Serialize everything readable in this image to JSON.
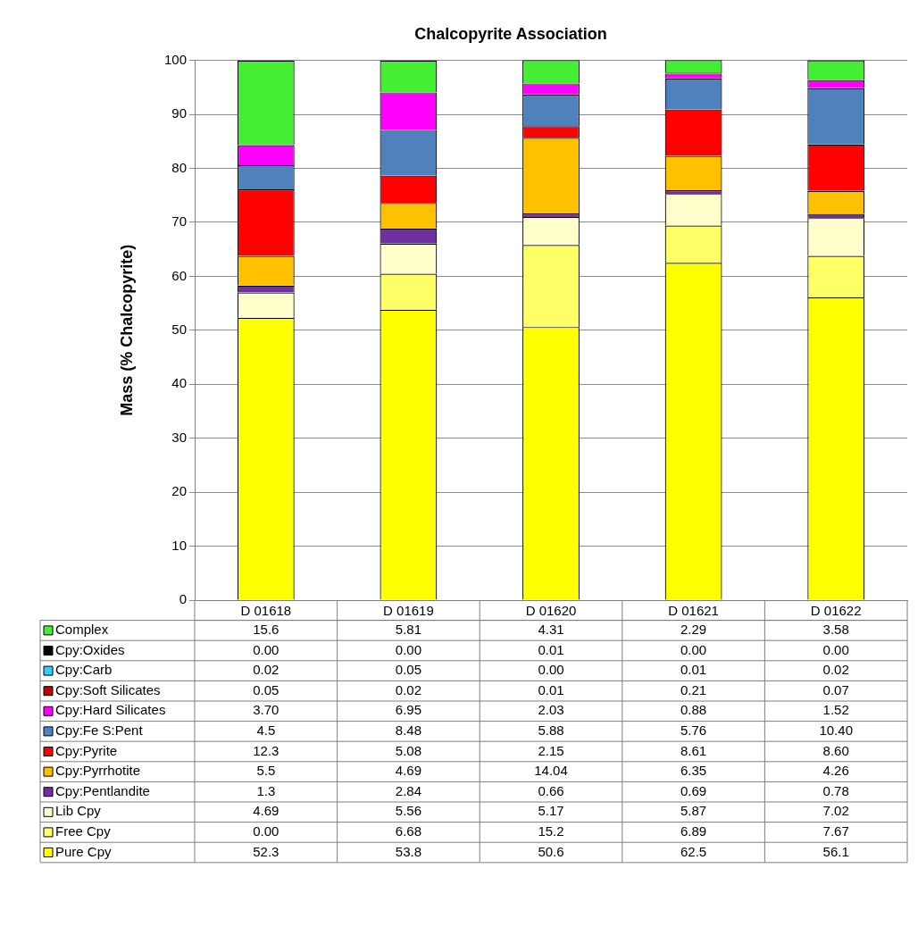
{
  "chart_data": {
    "type": "bar",
    "title": "Chalcopyrite Association",
    "ylabel": "Mass (% Chalcopyrite)",
    "categories": [
      "D 01618",
      "D 01619",
      "D 01620",
      "D 01621",
      "D 01622"
    ],
    "stacked": true,
    "ylim": [
      0,
      100
    ],
    "yticks": [
      0,
      10,
      20,
      30,
      40,
      50,
      60,
      70,
      80,
      90,
      100
    ],
    "grid": "y",
    "legend": "bottom",
    "series": [
      {
        "name": "Pure Cpy",
        "color": "#ffff00",
        "values": [
          52.3,
          53.8,
          50.6,
          62.5,
          56.1
        ],
        "value_labels": [
          "52.3",
          "53.8",
          "50.6",
          "62.5",
          "56.1"
        ]
      },
      {
        "name": "Free Cpy",
        "color": "#ffff66",
        "values": [
          0.0,
          6.68,
          15.2,
          6.89,
          7.67
        ],
        "value_labels": [
          "0.00",
          "6.68",
          "15.2",
          "6.89",
          "7.67"
        ]
      },
      {
        "name": "Lib Cpy",
        "color": "#ffffcc",
        "values": [
          4.69,
          5.56,
          5.17,
          5.87,
          7.02
        ],
        "value_labels": [
          "4.69",
          "5.56",
          "5.17",
          "5.87",
          "7.02"
        ]
      },
      {
        "name": "Cpy:Pentlandite",
        "color": "#7030a0",
        "values": [
          1.3,
          2.84,
          0.66,
          0.69,
          0.78
        ],
        "value_labels": [
          "1.3",
          "2.84",
          "0.66",
          "0.69",
          "0.78"
        ]
      },
      {
        "name": "Cpy:Pyrrhotite",
        "color": "#ffc000",
        "values": [
          5.5,
          4.69,
          14.04,
          6.35,
          4.26
        ],
        "value_labels": [
          "5.5",
          "4.69",
          "14.04",
          "6.35",
          "4.26"
        ]
      },
      {
        "name": "Cpy:Pyrite",
        "color": "#ff0000",
        "values": [
          12.3,
          5.08,
          2.15,
          8.61,
          8.6
        ],
        "value_labels": [
          "12.3",
          "5.08",
          "2.15",
          "8.61",
          "8.60"
        ]
      },
      {
        "name": "Cpy:Fe S:Pent",
        "color": "#4f81bd",
        "values": [
          4.5,
          8.48,
          5.88,
          5.76,
          10.4
        ],
        "value_labels": [
          "4.5",
          "8.48",
          "5.88",
          "5.76",
          "10.40"
        ]
      },
      {
        "name": "Cpy:Hard Silicates",
        "color": "#ff00ff",
        "values": [
          3.7,
          6.95,
          2.03,
          0.88,
          1.52
        ],
        "value_labels": [
          "3.70",
          "6.95",
          "2.03",
          "0.88",
          "1.52"
        ]
      },
      {
        "name": "Cpy:Soft Silicates",
        "color": "#c00000",
        "values": [
          0.05,
          0.02,
          0.01,
          0.21,
          0.07
        ],
        "value_labels": [
          "0.05",
          "0.02",
          "0.01",
          "0.21",
          "0.07"
        ]
      },
      {
        "name": "Cpy:Carb",
        "color": "#33ccff",
        "values": [
          0.02,
          0.05,
          0.0,
          0.01,
          0.02
        ],
        "value_labels": [
          "0.02",
          "0.05",
          "0.00",
          "0.01",
          "0.02"
        ]
      },
      {
        "name": "Cpy:Oxides",
        "color": "#000000",
        "values": [
          0.0,
          0.0,
          0.01,
          0.0,
          0.0
        ],
        "value_labels": [
          "0.00",
          "0.00",
          "0.01",
          "0.00",
          "0.00"
        ]
      },
      {
        "name": "Complex",
        "color": "#44ee33",
        "values": [
          15.6,
          5.81,
          4.31,
          2.29,
          3.58
        ],
        "value_labels": [
          "15.6",
          "5.81",
          "4.31",
          "2.29",
          "3.58"
        ]
      }
    ]
  }
}
